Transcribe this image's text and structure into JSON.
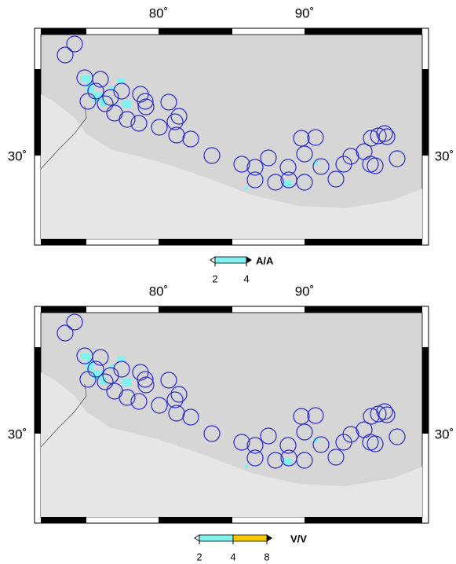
{
  "marker_color": "#2a2acc",
  "panels": [
    {
      "lon_labels": [
        "80˚",
        "90˚"
      ],
      "lat_labels": [
        "30˚",
        "30˚"
      ],
      "colorbar": {
        "ticks": [
          2,
          4
        ],
        "label": "A/A",
        "colors": [
          "#80f0f0"
        ]
      }
    },
    {
      "lon_labels": [
        "80˚",
        "90˚"
      ],
      "lat_labels": [
        "30˚",
        "30˚"
      ],
      "colorbar": {
        "ticks": [
          2,
          4,
          8
        ],
        "label": "V/V",
        "colors": [
          "#80f0f0",
          "#f8c800"
        ]
      }
    }
  ]
}
